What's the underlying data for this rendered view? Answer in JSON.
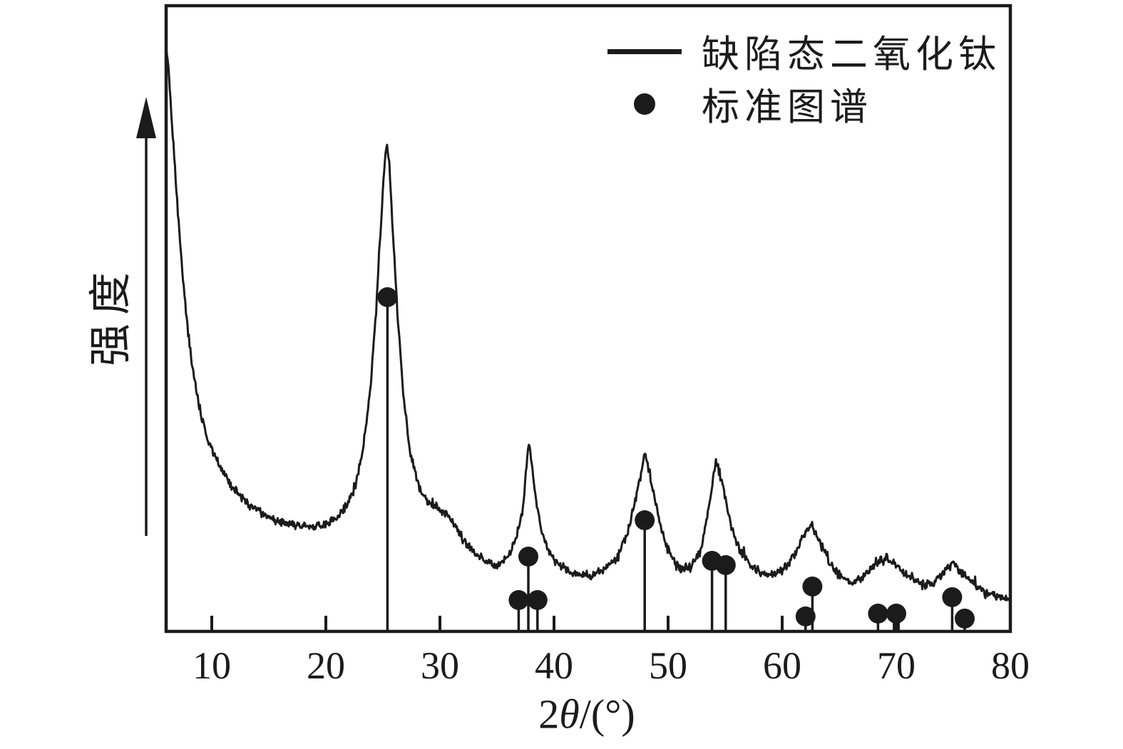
{
  "figure": {
    "background_color": "#ffffff",
    "ink_color": "#1b1b1b",
    "ylabel": "强度",
    "xlabel": "2θ/(°)",
    "legend_items": [
      {
        "marker": "line",
        "label": "缺陷态二氧化钛"
      },
      {
        "marker": "dot",
        "label": "标准图谱"
      }
    ]
  },
  "chart_data": {
    "type": "line",
    "title": "",
    "xlabel": "2θ/(°)",
    "ylabel": "强度 (arbitrary units)",
    "xlim": [
      6,
      80
    ],
    "x_ticks": [
      10,
      20,
      30,
      40,
      50,
      60,
      70,
      80
    ],
    "grid": false,
    "legend_position": "top-right",
    "series": [
      {
        "name": "缺陷态二氧化钛",
        "style": "noisy-line",
        "points": [
          [
            6.0,
            825
          ],
          [
            6.2,
            790
          ],
          [
            6.5,
            715
          ],
          [
            6.9,
            620
          ],
          [
            7.3,
            530
          ],
          [
            7.7,
            455
          ],
          [
            8.1,
            395
          ],
          [
            8.6,
            340
          ],
          [
            9.1,
            300
          ],
          [
            9.6,
            272
          ],
          [
            10.2,
            248
          ],
          [
            11.0,
            222
          ],
          [
            12.0,
            198
          ],
          [
            13.0,
            182
          ],
          [
            14.0,
            170
          ],
          [
            15.0,
            160
          ],
          [
            16.0,
            153
          ],
          [
            17.0,
            149
          ],
          [
            18.0,
            147
          ],
          [
            19.0,
            147
          ],
          [
            20.0,
            150
          ],
          [
            21.0,
            160
          ],
          [
            21.8,
            175
          ],
          [
            22.6,
            205
          ],
          [
            23.3,
            260
          ],
          [
            23.9,
            340
          ],
          [
            24.4,
            450
          ],
          [
            24.8,
            560
          ],
          [
            25.1,
            650
          ],
          [
            25.35,
            688
          ],
          [
            25.6,
            645
          ],
          [
            25.9,
            555
          ],
          [
            26.3,
            440
          ],
          [
            26.8,
            330
          ],
          [
            27.4,
            250
          ],
          [
            28.2,
            200
          ],
          [
            29.0,
            180
          ],
          [
            29.8,
            172
          ],
          [
            30.5,
            168
          ],
          [
            31.2,
            152
          ],
          [
            32.0,
            130
          ],
          [
            33.0,
            110
          ],
          [
            34.0,
            97
          ],
          [
            35.0,
            93
          ],
          [
            36.0,
            105
          ],
          [
            36.7,
            130
          ],
          [
            37.3,
            175
          ],
          [
            37.8,
            270
          ],
          [
            38.3,
            200
          ],
          [
            38.9,
            140
          ],
          [
            39.6,
            108
          ],
          [
            40.5,
            92
          ],
          [
            41.5,
            83
          ],
          [
            42.5,
            79
          ],
          [
            43.5,
            79
          ],
          [
            44.5,
            88
          ],
          [
            45.5,
            103
          ],
          [
            46.4,
            135
          ],
          [
            47.2,
            190
          ],
          [
            48.0,
            250
          ],
          [
            48.6,
            205
          ],
          [
            49.3,
            148
          ],
          [
            50.1,
            110
          ],
          [
            51.0,
            90
          ],
          [
            52.0,
            88
          ],
          [
            52.9,
            115
          ],
          [
            53.6,
            175
          ],
          [
            54.2,
            240
          ],
          [
            54.8,
            205
          ],
          [
            55.5,
            150
          ],
          [
            56.3,
            112
          ],
          [
            57.2,
            92
          ],
          [
            58.2,
            82
          ],
          [
            59.2,
            79
          ],
          [
            60.2,
            88
          ],
          [
            61.2,
            112
          ],
          [
            62.0,
            138
          ],
          [
            62.6,
            150
          ],
          [
            63.3,
            125
          ],
          [
            64.2,
            95
          ],
          [
            65.2,
            76
          ],
          [
            66.2,
            70
          ],
          [
            67.2,
            78
          ],
          [
            68.2,
            95
          ],
          [
            69.2,
            103
          ],
          [
            70.2,
            92
          ],
          [
            71.2,
            75
          ],
          [
            72.2,
            65
          ],
          [
            73.2,
            66
          ],
          [
            74.2,
            84
          ],
          [
            75.0,
            95
          ],
          [
            75.8,
            82
          ],
          [
            76.8,
            66
          ],
          [
            77.8,
            56
          ],
          [
            78.8,
            48
          ],
          [
            80.0,
            43
          ]
        ]
      },
      {
        "name": "标准图谱",
        "style": "stem-dots",
        "stems": [
          [
            25.4,
            469
          ],
          [
            36.9,
            44
          ],
          [
            37.75,
            105
          ],
          [
            38.55,
            44
          ],
          [
            47.95,
            156
          ],
          [
            53.85,
            99
          ],
          [
            55.05,
            93
          ],
          [
            62.05,
            21
          ],
          [
            62.65,
            63
          ],
          [
            68.4,
            25
          ],
          [
            69.8,
            25
          ],
          [
            70.2,
            25
          ],
          [
            74.9,
            48
          ],
          [
            76.0,
            18
          ]
        ],
        "dots": [
          [
            25.4,
            469
          ],
          [
            36.9,
            44
          ],
          [
            37.75,
            105
          ],
          [
            38.55,
            44
          ],
          [
            47.95,
            156
          ],
          [
            53.85,
            99
          ],
          [
            55.05,
            93
          ],
          [
            62.05,
            21
          ],
          [
            62.65,
            63
          ],
          [
            68.4,
            25
          ],
          [
            70.0,
            25
          ],
          [
            74.9,
            48
          ],
          [
            76.0,
            18
          ]
        ]
      }
    ]
  }
}
